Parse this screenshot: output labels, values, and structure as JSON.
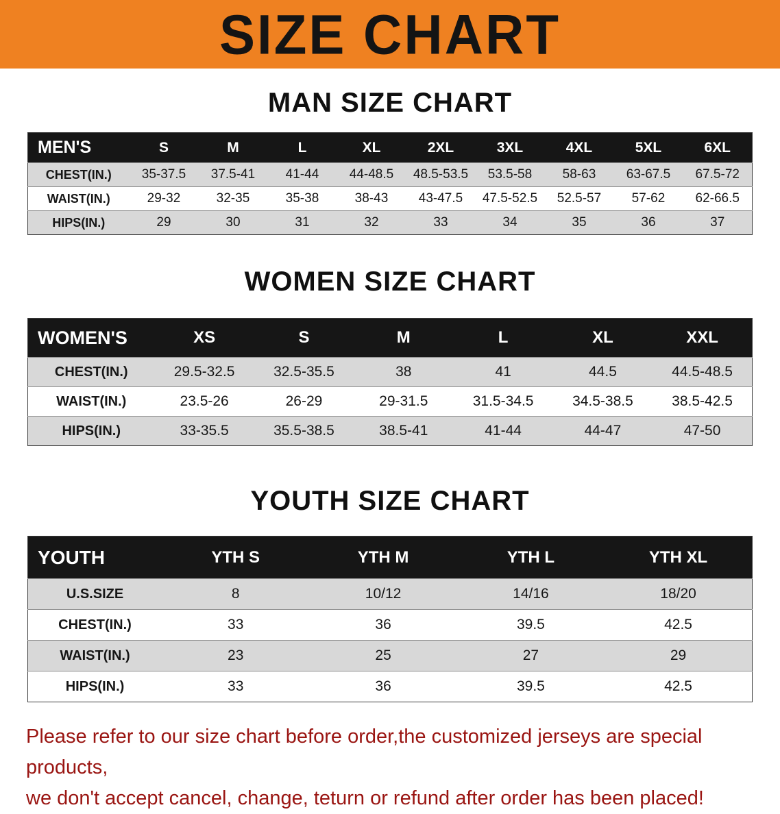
{
  "banner": {
    "title": "SIZE CHART",
    "bg_color": "#EF8121",
    "text_color": "#141414"
  },
  "chart_data": [
    {
      "type": "table",
      "title": "MAN SIZE CHART",
      "header": [
        "MEN'S",
        "S",
        "M",
        "L",
        "XL",
        "2XL",
        "3XL",
        "4XL",
        "5XL",
        "6XL"
      ],
      "rows": [
        [
          "CHEST(IN.)",
          "35-37.5",
          "37.5-41",
          "41-44",
          "44-48.5",
          "48.5-53.5",
          "53.5-58",
          "58-63",
          "63-67.5",
          "67.5-72"
        ],
        [
          "WAIST(IN.)",
          "29-32",
          "32-35",
          "35-38",
          "38-43",
          "43-47.5",
          "47.5-52.5",
          "52.5-57",
          "57-62",
          "62-66.5"
        ],
        [
          "HIPS(IN.)",
          "29",
          "30",
          "31",
          "32",
          "33",
          "34",
          "35",
          "36",
          "37"
        ]
      ]
    },
    {
      "type": "table",
      "title": "WOMEN SIZE CHART",
      "header": [
        "WOMEN'S",
        "XS",
        "S",
        "M",
        "L",
        "XL",
        "XXL"
      ],
      "rows": [
        [
          "CHEST(IN.)",
          "29.5-32.5",
          "32.5-35.5",
          "38",
          "41",
          "44.5",
          "44.5-48.5"
        ],
        [
          "WAIST(IN.)",
          "23.5-26",
          "26-29",
          "29-31.5",
          "31.5-34.5",
          "34.5-38.5",
          "38.5-42.5"
        ],
        [
          "HIPS(IN.)",
          "33-35.5",
          "35.5-38.5",
          "38.5-41",
          "41-44",
          "44-47",
          "47-50"
        ]
      ]
    },
    {
      "type": "table",
      "title": "YOUTH SIZE CHART",
      "header": [
        "YOUTH",
        "YTH S",
        "YTH M",
        "YTH L",
        "YTH XL"
      ],
      "rows": [
        [
          "U.S.SIZE",
          "8",
          "10/12",
          "14/16",
          "18/20"
        ],
        [
          "CHEST(IN.)",
          "33",
          "36",
          "39.5",
          "42.5"
        ],
        [
          "WAIST(IN.)",
          "23",
          "25",
          "27",
          "29"
        ],
        [
          "HIPS(IN.)",
          "33",
          "36",
          "39.5",
          "42.5"
        ]
      ]
    }
  ],
  "footer": {
    "line1": "Please refer to our size chart before order,the customized jerseys are special products,",
    "line2": "we don't accept cancel, change, teturn or refund after order has been placed!",
    "text_color": "#9A1512"
  }
}
